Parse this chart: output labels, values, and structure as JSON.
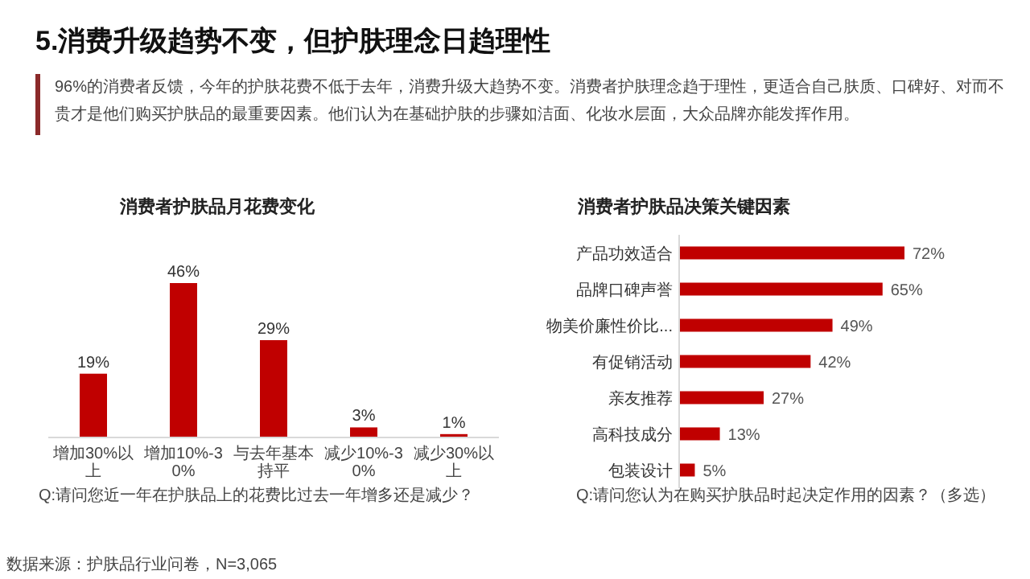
{
  "chart_data": [
    {
      "type": "other",
      "title": "5.消费升级趋势不变，但护肤理念日趋理性",
      "subtitle": "96%的消费者反馈，今年的护肤花费不低于去年，消费升级大趋势不变。消费者护肤理念趋于理性，更适合自己肤质、口碑好、对而不贵才是他们购买护肤品的最重要因素。他们认为在基础护肤的步骤如洁面、化妆水层面，大众品牌亦能发挥作用。",
      "annotations": [
        "数据来源：护肤品行业问卷，N=3,065"
      ]
    },
    {
      "type": "bar",
      "title": "消费者护肤品月花费变化",
      "categories": [
        "增加30%以上",
        "增加10%-30%",
        "与去年基本持平",
        "减少10%-30%",
        "减少30%以上"
      ],
      "values": [
        19,
        46,
        29,
        3,
        1
      ],
      "value_labels": [
        "19%",
        "46%",
        "29%",
        "3%",
        "1%"
      ],
      "color": "#c00000",
      "annotations": [
        "Q:请问您近一年在护肤品上的花费比过去一年增多还是减少？"
      ]
    },
    {
      "type": "bar",
      "orientation": "horizontal",
      "title": "消费者护肤品决策关键因素",
      "categories": [
        "产品功效适合",
        "品牌口碑声誉",
        "物美价廉性价比...",
        "有促销活动",
        "亲友推荐",
        "高科技成分",
        "包装设计"
      ],
      "values": [
        72,
        65,
        49,
        42,
        27,
        13,
        5
      ],
      "value_labels": [
        "72%",
        "65%",
        "49%",
        "42%",
        "27%",
        "13%",
        "5%"
      ],
      "color": "#c00000",
      "annotations": [
        "Q:请问您认为在购买护肤品时起决定作用的因素？（多选）"
      ]
    }
  ]
}
